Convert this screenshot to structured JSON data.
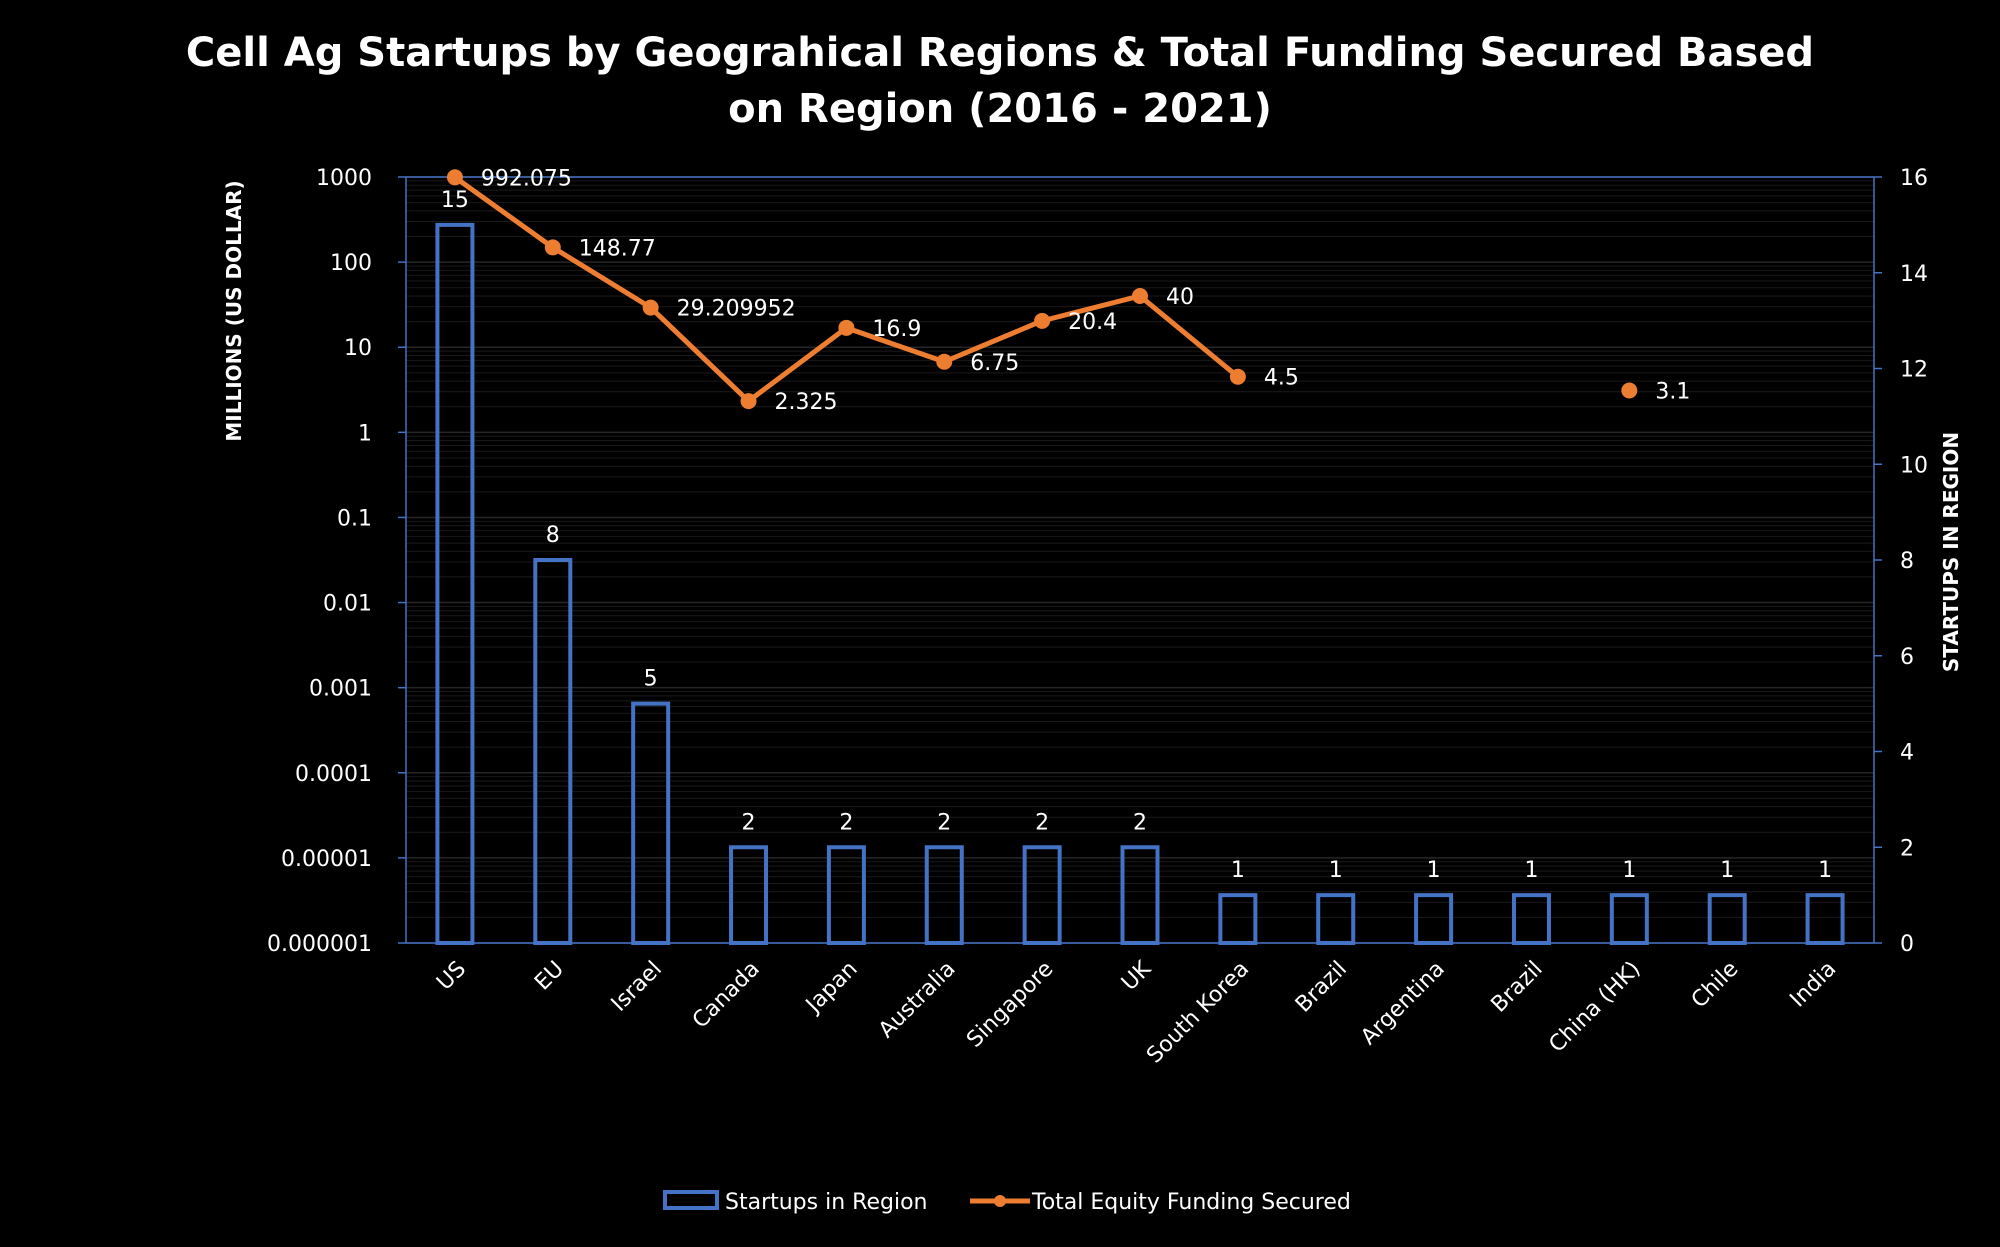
{
  "chart_data": {
    "type": "bar",
    "title_lines": [
      "Cell Ag Startups by Geograhical Regions & Total Funding Secured Based",
      "on Region (2016 - 2021)"
    ],
    "y_left_label": "MILLIONS (US DOLLAR)",
    "y_right_label": "STARTUPS IN REGION",
    "y_left_scale": "log",
    "y_left_ticks": [
      "1000",
      "100",
      "10",
      "1",
      "0.1",
      "0.01",
      "0.001",
      "0.0001",
      "0.00001",
      "0.000001"
    ],
    "y_left_range": [
      1e-06,
      1000
    ],
    "y_right_ticks": [
      "0",
      "2",
      "4",
      "6",
      "8",
      "10",
      "12",
      "14",
      "16"
    ],
    "y_right_range": [
      0,
      16
    ],
    "categories": [
      "US",
      "EU",
      "Israel",
      "Canada",
      "Japan",
      "Australia",
      "Singapore",
      "UK",
      "South Korea",
      "Brazil",
      "Argentina",
      "Brazil",
      "China (HK)",
      "Chile",
      "India"
    ],
    "series": [
      {
        "name": "Startups in Region",
        "type": "bar",
        "axis": "right",
        "color": "#4472C4",
        "values": [
          15,
          8,
          5,
          2,
          2,
          2,
          2,
          2,
          1,
          1,
          1,
          1,
          1,
          1,
          1
        ],
        "labels": [
          "15",
          "8",
          "5",
          "2",
          "2",
          "2",
          "2",
          "2",
          "1",
          "1",
          "1",
          "1",
          "1",
          "1",
          "1"
        ]
      },
      {
        "name": "Total Equity Funding Secured",
        "type": "line",
        "axis": "left",
        "color": "#ED7D31",
        "values": [
          992.075,
          148.77,
          29.209952,
          2.325,
          16.9,
          6.75,
          20.4,
          40,
          4.5,
          null,
          null,
          null,
          3.1,
          null,
          null
        ],
        "labels": [
          "992.075",
          "148.77",
          "29.209952",
          "2.325",
          "16.9",
          "6.75",
          "20.4",
          "40",
          "4.5",
          "",
          "",
          "",
          "3.1",
          "",
          ""
        ]
      }
    ],
    "grid": true,
    "legend_position": "bottom",
    "colors": {
      "background": "#000000",
      "text": "#ffffff",
      "axis": "#4472C4",
      "grid": "#262626"
    }
  }
}
